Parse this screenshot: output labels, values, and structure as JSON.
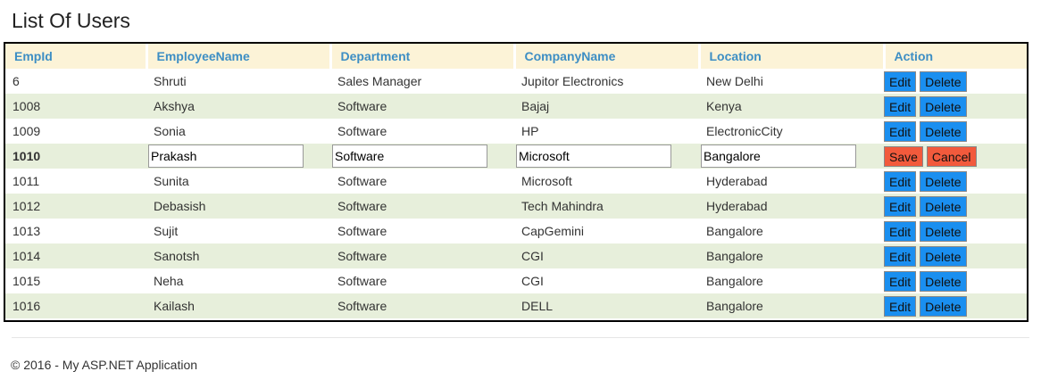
{
  "page": {
    "title": "List Of Users"
  },
  "table": {
    "headers": [
      "EmpId",
      "EmployeeName",
      "Department",
      "CompanyName",
      "Location",
      "Action"
    ],
    "rows": [
      {
        "empid": "6",
        "name": "Shruti",
        "department": "Sales Manager",
        "company": "Jupitor Electronics",
        "location": "New Delhi"
      },
      {
        "empid": "1008",
        "name": "Akshya",
        "department": "Software",
        "company": "Bajaj",
        "location": "Kenya"
      },
      {
        "empid": "1009",
        "name": "Sonia",
        "department": "Software",
        "company": "HP",
        "location": "ElectronicCity"
      },
      {
        "empid": "1010",
        "name": "Prakash",
        "department": "Software",
        "company": "Microsoft",
        "location": "Bangalore"
      },
      {
        "empid": "1011",
        "name": "Sunita",
        "department": "Software",
        "company": "Microsoft",
        "location": "Hyderabad"
      },
      {
        "empid": "1012",
        "name": "Debasish",
        "department": "Software",
        "company": "Tech Mahindra",
        "location": "Hyderabad"
      },
      {
        "empid": "1013",
        "name": "Sujit",
        "department": "Software",
        "company": "CapGemini",
        "location": "Bangalore"
      },
      {
        "empid": "1014",
        "name": "Sanotsh",
        "department": "Software",
        "company": "CGI",
        "location": "Bangalore"
      },
      {
        "empid": "1015",
        "name": "Neha",
        "department": "Software",
        "company": "CGI",
        "location": "Bangalore"
      },
      {
        "empid": "1016",
        "name": "Kailash",
        "department": "Software",
        "company": "DELL",
        "location": "Bangalore"
      }
    ],
    "edit_label": "Edit",
    "delete_label": "Delete",
    "save_label": "Save",
    "cancel_label": "Cancel"
  },
  "footer": {
    "text": "© 2016 - My ASP.NET Application"
  },
  "colors": {
    "header_bg": "#fcf3d7",
    "header_text": "#3d8ec4",
    "alt_row_bg": "#e7efdb",
    "button_blue": "#1a8ff0",
    "button_red": "#f25a3c"
  }
}
